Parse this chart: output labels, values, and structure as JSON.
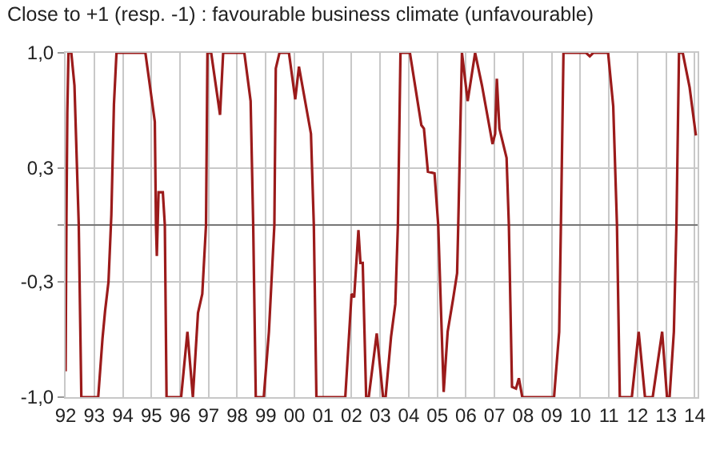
{
  "chart_data": {
    "type": "line",
    "title": "Close to +1 (resp. -1) : favourable business climate (unfavourable)",
    "x": [
      1992.0,
      1992.03,
      1992.06,
      1992.1,
      1992.2,
      1992.31,
      1992.46,
      1992.55,
      1993.14,
      1993.29,
      1993.38,
      1993.5,
      1993.6,
      1993.69,
      1993.78,
      1994.79,
      1995.12,
      1995.16,
      1995.19,
      1995.25,
      1995.4,
      1995.47,
      1995.53,
      1996.04,
      1996.26,
      1996.45,
      1996.63,
      1996.78,
      1996.91,
      1996.96,
      1997.09,
      1997.4,
      1997.51,
      1998.25,
      1998.47,
      1998.56,
      1998.65,
      1998.93,
      1999.11,
      1999.3,
      1999.35,
      1999.48,
      1999.81,
      2000.03,
      2000.16,
      2000.58,
      2000.68,
      2000.77,
      2001.78,
      2002.0,
      2002.09,
      2002.24,
      2002.31,
      2002.39,
      2002.51,
      2002.6,
      2002.88,
      2003.1,
      2003.19,
      2003.38,
      2003.53,
      2003.62,
      2003.71,
      2004.04,
      2004.44,
      2004.53,
      2004.67,
      2004.9,
      2005.03,
      2005.22,
      2005.36,
      2005.55,
      2005.69,
      2005.73,
      2005.86,
      2006.06,
      2006.32,
      2006.56,
      2006.93,
      2007.02,
      2007.08,
      2007.17,
      2007.42,
      2007.5,
      2007.61,
      2007.75,
      2007.85,
      2007.97,
      2009.08,
      2009.26,
      2009.32,
      2009.41,
      2010.2,
      2010.33,
      2010.45,
      2010.97,
      2011.15,
      2011.28,
      2011.38,
      2011.8,
      2012.04,
      2012.26,
      2012.53,
      2012.86,
      2013.03,
      2013.12,
      2013.27,
      2013.36,
      2013.45,
      2013.58,
      2013.82,
      2014.04
    ],
    "series": [
      {
        "color": "#9b1b1b",
        "values": [
          -0.85,
          0.05,
          0.65,
          1.0,
          1.0,
          0.81,
          0.0,
          -1.0,
          -1.0,
          -0.66,
          -0.5,
          -0.33,
          0.06,
          0.7,
          1.0,
          1.0,
          0.6,
          0.0,
          -0.18,
          0.19,
          0.19,
          0.0,
          -1.0,
          -1.0,
          -0.62,
          -1.0,
          -0.51,
          -0.4,
          0.0,
          1.0,
          1.0,
          0.64,
          1.0,
          1.0,
          0.72,
          0.0,
          -1.0,
          -1.0,
          -0.62,
          0.0,
          0.91,
          1.0,
          1.0,
          0.73,
          0.92,
          0.53,
          0.0,
          -1.0,
          -1.0,
          -0.4,
          -0.42,
          -0.03,
          -0.22,
          -0.22,
          -1.0,
          -1.0,
          -0.63,
          -1.0,
          -1.0,
          -0.65,
          -0.46,
          0.0,
          1.0,
          1.0,
          0.58,
          0.56,
          0.31,
          0.3,
          0.0,
          -0.97,
          -0.62,
          -0.43,
          -0.28,
          0.0,
          1.0,
          0.72,
          1.0,
          0.81,
          0.47,
          0.53,
          0.85,
          0.56,
          0.39,
          0.0,
          -0.94,
          -0.95,
          -0.89,
          -1.0,
          -1.0,
          -0.62,
          0.0,
          1.0,
          1.0,
          0.98,
          1.0,
          1.0,
          0.69,
          0.0,
          -1.0,
          -1.0,
          -0.62,
          -1.0,
          -1.0,
          -0.62,
          -1.0,
          -1.0,
          -0.62,
          0.0,
          1.0,
          1.0,
          0.8,
          0.52
        ]
      }
    ],
    "xlim": [
      1992,
      2014.1
    ],
    "xticks": [
      {
        "value": 1992,
        "label": "92"
      },
      {
        "value": 1993,
        "label": "93"
      },
      {
        "value": 1994,
        "label": "94"
      },
      {
        "value": 1995,
        "label": "95"
      },
      {
        "value": 1996,
        "label": "96"
      },
      {
        "value": 1997,
        "label": "97"
      },
      {
        "value": 1998,
        "label": "98"
      },
      {
        "value": 1999,
        "label": "99"
      },
      {
        "value": 2000,
        "label": "00"
      },
      {
        "value": 2001,
        "label": "01"
      },
      {
        "value": 2002,
        "label": "02"
      },
      {
        "value": 2003,
        "label": "03"
      },
      {
        "value": 2004,
        "label": "04"
      },
      {
        "value": 2005,
        "label": "05"
      },
      {
        "value": 2006,
        "label": "06"
      },
      {
        "value": 2007,
        "label": "07"
      },
      {
        "value": 2008,
        "label": "08"
      },
      {
        "value": 2009,
        "label": "09"
      },
      {
        "value": 2010,
        "label": "10"
      },
      {
        "value": 2011,
        "label": "11"
      },
      {
        "value": 2012,
        "label": "12"
      },
      {
        "value": 2013,
        "label": "13"
      },
      {
        "value": 2014,
        "label": "14"
      }
    ],
    "ylim": [
      -1.0,
      1.0
    ],
    "yticks": [
      {
        "value": -1.0,
        "label": "-1,0"
      },
      {
        "value": -0.33,
        "label": "-0,3"
      },
      {
        "value": 0,
        "label": null
      },
      {
        "value": 0.33,
        "label": "0,3"
      },
      {
        "value": 1.0,
        "label": "1,0"
      }
    ],
    "grid": true,
    "marker": "none",
    "line_style": "solid"
  }
}
